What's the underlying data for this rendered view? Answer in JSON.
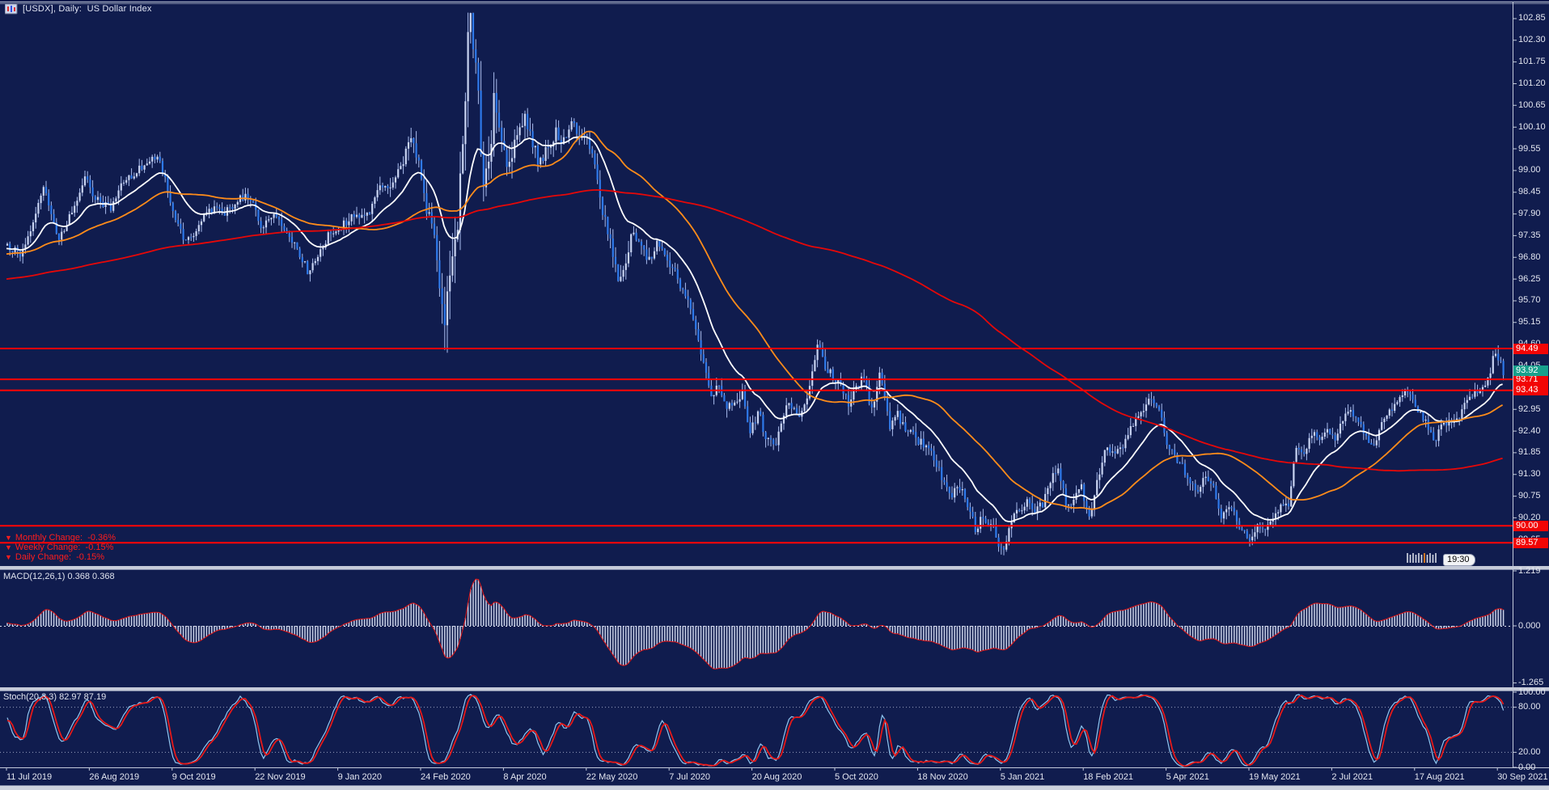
{
  "window": {
    "title": "[USDX], Daily:  US Dollar Index"
  },
  "colors": {
    "background": "#101c4e",
    "bull_candle": "#c9d4f2",
    "bear_candle": "#2e79ea",
    "wick": "#a9bcee",
    "ma_fast": "#ffffff",
    "ma_mid": "#ff8c1a",
    "ma_slow": "#e60808",
    "hline": "#ff0404",
    "axis_text": "#e3e6f0",
    "axis_line": "#c2c9da",
    "macd_bar": "#c9d1e8",
    "macd_line": "#e01616",
    "stoch_k": "#8fc6f0",
    "stoch_d": "#e51818",
    "change_text": "#ff1d1d",
    "tag_red_bg": "#f20505",
    "tag_teal_bg": "#17a08c"
  },
  "chart_data": {
    "type": "candlestick",
    "symbol": "USDX",
    "timeframe": "Daily",
    "title": "US Dollar Index",
    "bars": 579,
    "price_axis": {
      "min": 88.98,
      "max": 102.89,
      "tick_step": 0.55,
      "ticks": [
        102.85,
        102.3,
        101.75,
        101.2,
        100.65,
        100.1,
        99.55,
        99.0,
        98.45,
        97.9,
        97.35,
        96.8,
        96.25,
        95.7,
        95.15,
        94.6,
        94.05,
        93.5,
        92.95,
        92.4,
        91.85,
        91.3,
        90.75,
        90.2,
        89.65
      ]
    },
    "time_axis": {
      "labels": [
        {
          "text": "11 Jul 2019",
          "bar": 0
        },
        {
          "text": "26 Aug 2019",
          "bar": 32
        },
        {
          "text": "9 Oct 2019",
          "bar": 64
        },
        {
          "text": "22 Nov 2019",
          "bar": 96
        },
        {
          "text": "9 Jan 2020",
          "bar": 128
        },
        {
          "text": "24 Feb 2020",
          "bar": 160
        },
        {
          "text": "8 Apr 2020",
          "bar": 192
        },
        {
          "text": "22 May 2020",
          "bar": 224
        },
        {
          "text": "7 Jul 2020",
          "bar": 256
        },
        {
          "text": "20 Aug 2020",
          "bar": 288
        },
        {
          "text": "5 Oct 2020",
          "bar": 320
        },
        {
          "text": "18 Nov 2020",
          "bar": 352
        },
        {
          "text": "5 Jan 2021",
          "bar": 384
        },
        {
          "text": "18 Feb 2021",
          "bar": 416
        },
        {
          "text": "5 Apr 2021",
          "bar": 448
        },
        {
          "text": "19 May 2021",
          "bar": 480
        },
        {
          "text": "2 Jul 2021",
          "bar": 512
        },
        {
          "text": "17 Aug 2021",
          "bar": 544
        },
        {
          "text": "30 Sep 2021",
          "bar": 576
        }
      ]
    },
    "price_anchors": [
      [
        0,
        97.1
      ],
      [
        5,
        96.9
      ],
      [
        9,
        97.4
      ],
      [
        14,
        98.55
      ],
      [
        17,
        97.9
      ],
      [
        20,
        97.25
      ],
      [
        26,
        98.1
      ],
      [
        30,
        98.9
      ],
      [
        33,
        98.35
      ],
      [
        36,
        98.2
      ],
      [
        40,
        98.0
      ],
      [
        44,
        98.65
      ],
      [
        50,
        99.0
      ],
      [
        58,
        99.35
      ],
      [
        61,
        98.75
      ],
      [
        64,
        97.9
      ],
      [
        68,
        97.3
      ],
      [
        72,
        97.3
      ],
      [
        76,
        97.9
      ],
      [
        80,
        98.0
      ],
      [
        84,
        97.9
      ],
      [
        90,
        98.35
      ],
      [
        95,
        98.25
      ],
      [
        98,
        97.6
      ],
      [
        103,
        97.8
      ],
      [
        108,
        97.5
      ],
      [
        112,
        97.05
      ],
      [
        116,
        96.45
      ],
      [
        120,
        96.9
      ],
      [
        124,
        97.35
      ],
      [
        128,
        97.5
      ],
      [
        133,
        97.85
      ],
      [
        137,
        97.9
      ],
      [
        140,
        98.0
      ],
      [
        144,
        98.5
      ],
      [
        148,
        98.65
      ],
      [
        152,
        99.1
      ],
      [
        156,
        99.85
      ],
      [
        159,
        99.3
      ],
      [
        162,
        98.1
      ],
      [
        165,
        97.4
      ],
      [
        169,
        94.9
      ],
      [
        171,
        96.3
      ],
      [
        174,
        97.9
      ],
      [
        176,
        99.6
      ],
      [
        178,
        102.85
      ],
      [
        180,
        102.2
      ],
      [
        182,
        100.9
      ],
      [
        184,
        98.45
      ],
      [
        186,
        99.0
      ],
      [
        188,
        100.75
      ],
      [
        191,
        99.6
      ],
      [
        194,
        99.05
      ],
      [
        197,
        100.0
      ],
      [
        200,
        100.35
      ],
      [
        203,
        99.6
      ],
      [
        206,
        99.15
      ],
      [
        209,
        99.6
      ],
      [
        212,
        100.0
      ],
      [
        215,
        99.7
      ],
      [
        218,
        100.4
      ],
      [
        221,
        99.9
      ],
      [
        224,
        99.9
      ],
      [
        227,
        99.0
      ],
      [
        230,
        98.0
      ],
      [
        233,
        97.3
      ],
      [
        236,
        96.2
      ],
      [
        239,
        96.7
      ],
      [
        242,
        97.5
      ],
      [
        245,
        97.1
      ],
      [
        248,
        96.7
      ],
      [
        251,
        97.25
      ],
      [
        254,
        96.9
      ],
      [
        257,
        96.55
      ],
      [
        260,
        96.1
      ],
      [
        263,
        95.8
      ],
      [
        266,
        95.0
      ],
      [
        269,
        94.2
      ],
      [
        272,
        93.35
      ],
      [
        275,
        93.6
      ],
      [
        278,
        92.95
      ],
      [
        281,
        93.1
      ],
      [
        284,
        93.4
      ],
      [
        287,
        92.35
      ],
      [
        290,
        92.9
      ],
      [
        293,
        92.3
      ],
      [
        296,
        91.95
      ],
      [
        299,
        92.6
      ],
      [
        302,
        93.2
      ],
      [
        305,
        92.8
      ],
      [
        308,
        93.0
      ],
      [
        311,
        93.9
      ],
      [
        313,
        94.55
      ],
      [
        316,
        94.05
      ],
      [
        319,
        93.8
      ],
      [
        322,
        93.55
      ],
      [
        325,
        93.1
      ],
      [
        328,
        93.5
      ],
      [
        331,
        93.8
      ],
      [
        334,
        92.9
      ],
      [
        337,
        93.9
      ],
      [
        339,
        93.2
      ],
      [
        341,
        92.5
      ],
      [
        344,
        92.8
      ],
      [
        347,
        92.5
      ],
      [
        350,
        92.25
      ],
      [
        353,
        92.1
      ],
      [
        356,
        91.9
      ],
      [
        359,
        91.55
      ],
      [
        362,
        91.1
      ],
      [
        365,
        90.75
      ],
      [
        368,
        91.0
      ],
      [
        371,
        90.6
      ],
      [
        374,
        89.95
      ],
      [
        377,
        90.2
      ],
      [
        380,
        90.1
      ],
      [
        383,
        89.6
      ],
      [
        385,
        89.3
      ],
      [
        388,
        90.2
      ],
      [
        391,
        90.4
      ],
      [
        394,
        90.7
      ],
      [
        397,
        90.35
      ],
      [
        400,
        90.55
      ],
      [
        403,
        91.2
      ],
      [
        406,
        91.5
      ],
      [
        409,
        90.55
      ],
      [
        412,
        90.7
      ],
      [
        415,
        90.95
      ],
      [
        418,
        90.2
      ],
      [
        421,
        91.1
      ],
      [
        424,
        92.0
      ],
      [
        427,
        91.8
      ],
      [
        430,
        91.9
      ],
      [
        433,
        92.3
      ],
      [
        436,
        92.8
      ],
      [
        439,
        93.0
      ],
      [
        442,
        93.3
      ],
      [
        445,
        92.9
      ],
      [
        448,
        92.15
      ],
      [
        451,
        91.8
      ],
      [
        454,
        91.5
      ],
      [
        457,
        91.1
      ],
      [
        460,
        90.9
      ],
      [
        463,
        91.3
      ],
      [
        466,
        91.0
      ],
      [
        469,
        90.25
      ],
      [
        472,
        90.55
      ],
      [
        475,
        90.15
      ],
      [
        478,
        89.8
      ],
      [
        480,
        89.65
      ],
      [
        483,
        90.05
      ],
      [
        486,
        89.9
      ],
      [
        489,
        90.15
      ],
      [
        492,
        90.5
      ],
      [
        495,
        90.6
      ],
      [
        498,
        92.0
      ],
      [
        501,
        91.8
      ],
      [
        504,
        92.35
      ],
      [
        507,
        92.2
      ],
      [
        510,
        92.4
      ],
      [
        513,
        92.15
      ],
      [
        516,
        92.65
      ],
      [
        519,
        92.95
      ],
      [
        522,
        92.6
      ],
      [
        525,
        92.2
      ],
      [
        528,
        92.1
      ],
      [
        531,
        92.6
      ],
      [
        534,
        92.9
      ],
      [
        537,
        93.1
      ],
      [
        540,
        93.5
      ],
      [
        543,
        93.1
      ],
      [
        546,
        92.85
      ],
      [
        549,
        92.5
      ],
      [
        551,
        92.1
      ],
      [
        554,
        92.5
      ],
      [
        557,
        92.7
      ],
      [
        560,
        92.65
      ],
      [
        563,
        93.1
      ],
      [
        566,
        93.3
      ],
      [
        569,
        93.45
      ],
      [
        572,
        93.75
      ],
      [
        575,
        94.4
      ],
      [
        576,
        94.3
      ],
      [
        577,
        94.1
      ],
      [
        578,
        93.92
      ]
    ],
    "volatility_anchors": [
      [
        0,
        0.42
      ],
      [
        60,
        0.4
      ],
      [
        120,
        0.42
      ],
      [
        150,
        0.55
      ],
      [
        165,
        0.9
      ],
      [
        169,
        1.5
      ],
      [
        175,
        1.8
      ],
      [
        178,
        2.4
      ],
      [
        183,
        1.7
      ],
      [
        190,
        1.1
      ],
      [
        200,
        0.8
      ],
      [
        215,
        0.6
      ],
      [
        235,
        0.7
      ],
      [
        255,
        0.5
      ],
      [
        275,
        0.55
      ],
      [
        300,
        0.5
      ],
      [
        340,
        0.5
      ],
      [
        380,
        0.55
      ],
      [
        420,
        0.5
      ],
      [
        460,
        0.42
      ],
      [
        500,
        0.45
      ],
      [
        540,
        0.4
      ],
      [
        570,
        0.45
      ],
      [
        578,
        0.5
      ]
    ],
    "moving_averages": [
      {
        "name": "fast",
        "type": "ema",
        "period": 20,
        "color_key": "ma_fast"
      },
      {
        "name": "medium",
        "type": "sma",
        "period": 50,
        "color_key": "ma_mid"
      },
      {
        "name": "slow",
        "type": "sma",
        "period": 200,
        "color_key": "ma_slow"
      }
    ],
    "horizontal_levels": [
      94.49,
      93.71,
      93.43,
      90.0,
      89.57
    ],
    "current_price": 93.92,
    "indicators": {
      "macd": {
        "label": "MACD(12,26,1) 0.368 0.368",
        "fast": 12,
        "slow": 26,
        "signal": 1,
        "value": 0.368,
        "signal_value": 0.368,
        "range": [
          -1.265,
          1.219
        ],
        "axis_ticks": [
          1.219,
          0.0,
          -1.265
        ]
      },
      "stoch": {
        "label": "Stoch(20,3,3) 82.97 87.19",
        "k": 20,
        "d": 3,
        "slowing": 3,
        "value_k": 82.97,
        "value_d": 87.19,
        "levels": [
          80,
          20
        ],
        "axis_ticks": [
          100.0,
          80.0,
          20.0,
          0.0
        ]
      }
    },
    "overlays": {
      "changes": [
        {
          "icon": "▼",
          "text": "Monthly Change:  -0.36%"
        },
        {
          "icon": "▼",
          "text": "Weekly Change:  -0.15%"
        },
        {
          "icon": "▼",
          "text": "Daily Change:  -0.15%"
        }
      ],
      "countdown": "19:30"
    }
  }
}
